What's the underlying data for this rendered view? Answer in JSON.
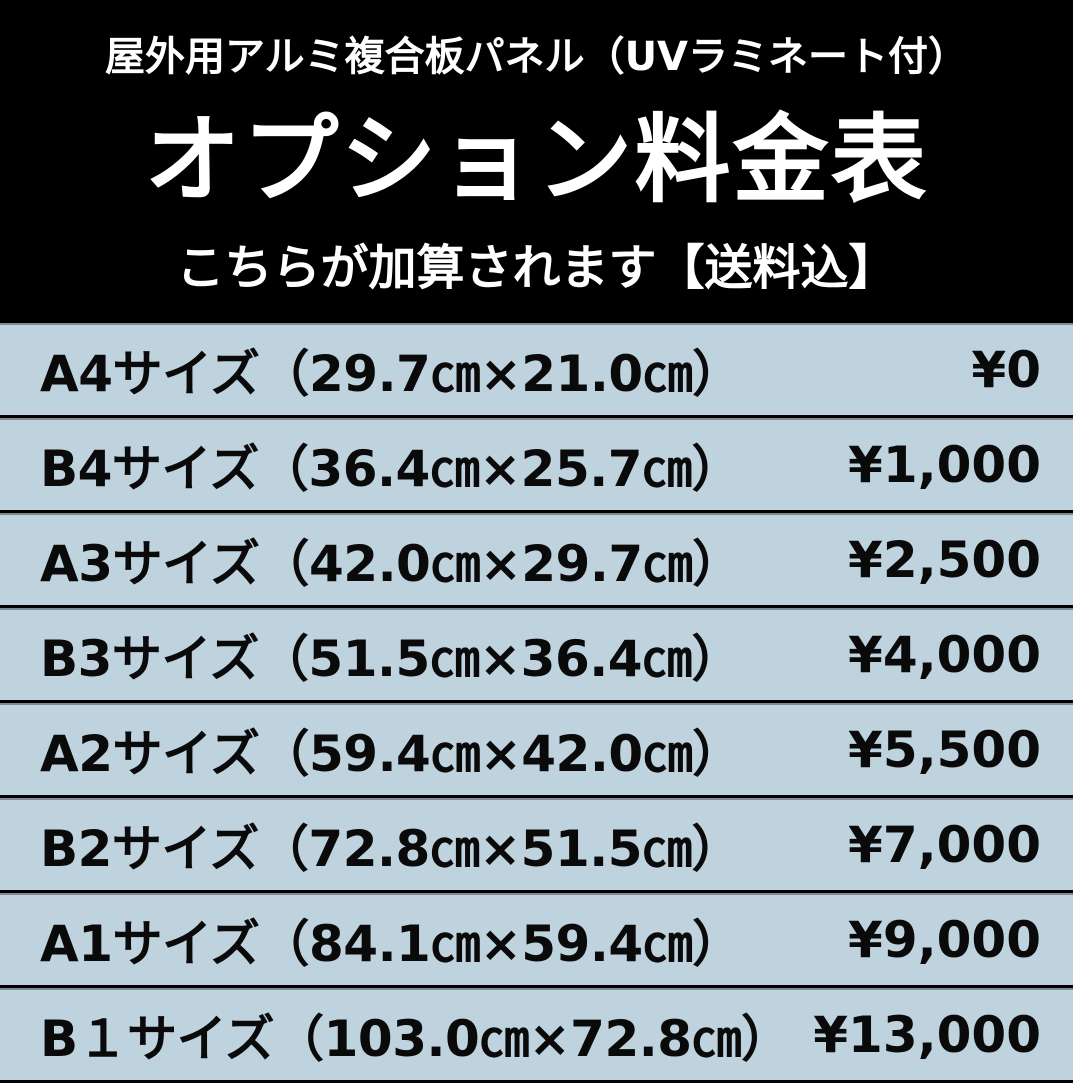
{
  "header": {
    "subtitle": "屋外用アルミ複合板パネル（UVラミネート付）",
    "title": "オプション料金表",
    "note": "こちらが加算されます【送料込】"
  },
  "colors": {
    "header_bg": "#000000",
    "row_bg": "#bfd3df",
    "text": "#0a0a0a"
  },
  "rows": [
    {
      "size": "A4サイズ（29.7㎝×21.0㎝）",
      "price": "¥0"
    },
    {
      "size": "B4サイズ（36.4㎝×25.7㎝）",
      "price": "¥1,000"
    },
    {
      "size": "A3サイズ（42.0㎝×29.7㎝）",
      "price": "¥2,500"
    },
    {
      "size": "B3サイズ（51.5㎝×36.4㎝）",
      "price": "¥4,000"
    },
    {
      "size": "A2サイズ（59.4㎝×42.0㎝）",
      "price": "¥5,500"
    },
    {
      "size": "B2サイズ（72.8㎝×51.5㎝）",
      "price": "¥7,000"
    },
    {
      "size": "A1サイズ（84.1㎝×59.4㎝）",
      "price": "¥9,000"
    },
    {
      "size": "B１サイズ（103.0㎝×72.8㎝）",
      "price": "¥13,000"
    }
  ]
}
